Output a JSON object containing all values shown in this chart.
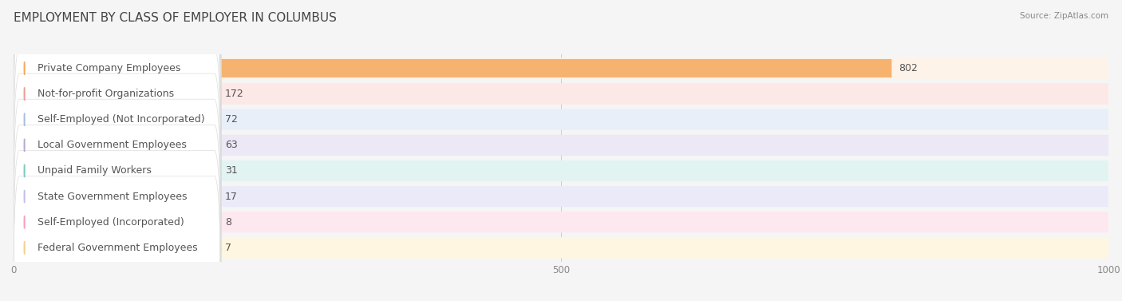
{
  "title": "EMPLOYMENT BY CLASS OF EMPLOYER IN COLUMBUS",
  "source": "Source: ZipAtlas.com",
  "categories": [
    "Private Company Employees",
    "Not-for-profit Organizations",
    "Self-Employed (Not Incorporated)",
    "Local Government Employees",
    "Unpaid Family Workers",
    "State Government Employees",
    "Self-Employed (Incorporated)",
    "Federal Government Employees"
  ],
  "values": [
    802,
    172,
    72,
    63,
    31,
    17,
    8,
    7
  ],
  "bar_colors": [
    "#f5a85b",
    "#e8a094",
    "#a8bedf",
    "#b9a8d4",
    "#7ec8c0",
    "#c0c0e8",
    "#f4a0b8",
    "#f5d08a"
  ],
  "row_bg_colors": [
    "#fef3e8",
    "#fce8e6",
    "#e8eff8",
    "#ece8f5",
    "#e2f4f2",
    "#eaeaf8",
    "#fde8f0",
    "#fef6e0"
  ],
  "xlim": [
    0,
    1000
  ],
  "xticks": [
    0,
    500,
    1000
  ],
  "background_color": "#f5f5f5",
  "title_fontsize": 11,
  "label_fontsize": 9,
  "value_fontsize": 9
}
